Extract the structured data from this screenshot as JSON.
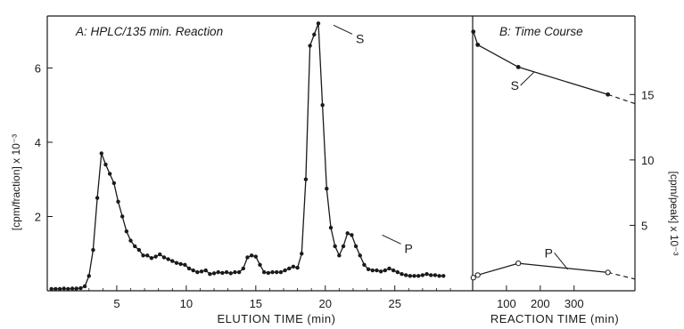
{
  "chart_data": [
    {
      "type": "line",
      "title": "A:  HPLC/135 min. Reaction",
      "xlabel": "ELUTION TIME (min)",
      "ylabel": "[cpm/fraction] x 10⁻³",
      "xlim": [
        0,
        30.6
      ],
      "ylim": [
        0,
        7.4
      ],
      "xticks": [
        5,
        10,
        15,
        20,
        25
      ],
      "yticks": [
        2,
        4,
        6
      ],
      "grid": false,
      "series": [
        {
          "x": [
            0.3,
            0.6,
            0.9,
            1.2,
            1.5,
            1.8,
            2.1,
            2.4,
            2.7,
            3.0,
            3.3,
            3.6,
            3.9,
            4.2,
            4.5,
            4.8,
            5.1,
            5.4,
            5.7,
            6.0,
            6.3,
            6.6,
            6.9,
            7.2,
            7.5,
            7.8,
            8.1,
            8.4,
            8.7,
            9.0,
            9.3,
            9.6,
            9.9,
            10.2,
            10.5,
            10.8,
            11.1,
            11.4,
            11.7,
            12.0,
            12.3,
            12.6,
            12.9,
            13.2,
            13.5,
            13.8,
            14.1,
            14.4,
            14.7,
            15.0,
            15.3,
            15.6,
            15.9,
            16.2,
            16.5,
            16.8,
            17.1,
            17.4,
            17.7,
            18.0,
            18.3,
            18.6,
            18.9,
            19.2,
            19.5,
            19.8,
            20.1,
            20.4,
            20.7,
            21.0,
            21.3,
            21.6,
            21.9,
            22.2,
            22.5,
            22.8,
            23.1,
            23.4,
            23.7,
            24.0,
            24.3,
            24.6,
            24.9,
            25.2,
            25.5,
            25.8,
            26.1,
            26.4,
            26.7,
            27.0,
            27.3,
            27.6,
            27.9,
            28.2,
            28.5
          ],
          "values": [
            0.05,
            0.05,
            0.05,
            0.06,
            0.05,
            0.06,
            0.06,
            0.07,
            0.12,
            0.4,
            1.1,
            2.5,
            3.7,
            3.4,
            3.15,
            2.9,
            2.4,
            2.0,
            1.6,
            1.35,
            1.2,
            1.1,
            0.95,
            0.95,
            0.88,
            0.92,
            0.98,
            0.9,
            0.85,
            0.8,
            0.75,
            0.72,
            0.7,
            0.6,
            0.55,
            0.5,
            0.52,
            0.55,
            0.45,
            0.47,
            0.5,
            0.48,
            0.5,
            0.47,
            0.5,
            0.5,
            0.6,
            0.9,
            0.95,
            0.92,
            0.7,
            0.5,
            0.48,
            0.5,
            0.5,
            0.5,
            0.55,
            0.6,
            0.65,
            0.62,
            1.0,
            3.0,
            6.6,
            6.9,
            7.2,
            5.0,
            2.75,
            1.7,
            1.2,
            0.95,
            1.2,
            1.55,
            1.5,
            1.2,
            0.95,
            0.7,
            0.58,
            0.55,
            0.55,
            0.52,
            0.55,
            0.6,
            0.55,
            0.5,
            0.45,
            0.42,
            0.4,
            0.4,
            0.4,
            0.42,
            0.45,
            0.42,
            0.42,
            0.4,
            0.4
          ]
        }
      ],
      "annotations": [
        {
          "text": "S",
          "x": 20.4,
          "y": 7.2
        },
        {
          "text": "P",
          "x": 23.9,
          "y": 1.55
        }
      ]
    },
    {
      "type": "line",
      "title": "B:  Time Course",
      "xlabel": "REACTION TIME (min)",
      "ylabel": "[cpm/peak] x 10⁻³",
      "xlim": [
        0,
        480
      ],
      "ylim": [
        0,
        21
      ],
      "xticks": [
        100,
        200,
        300
      ],
      "yticks": [
        5,
        10,
        15
      ],
      "grid": false,
      "series": [
        {
          "name": "S",
          "x": [
            2,
            15,
            135,
            400
          ],
          "values": [
            19.8,
            18.8,
            17.1,
            15.0
          ],
          "extrapolated": {
            "x": [
              400,
              480
            ],
            "values": [
              15.0,
              14.3
            ]
          },
          "marker": "filled"
        },
        {
          "name": "P",
          "x": [
            2,
            15,
            135,
            400
          ],
          "values": [
            1.0,
            1.2,
            2.1,
            1.4
          ],
          "extrapolated": {
            "x": [
              400,
              480
            ],
            "values": [
              1.4,
              0.9
            ]
          },
          "marker": "open"
        }
      ],
      "annotations": [
        {
          "text": "S",
          "x": 160,
          "y": 15.7
        },
        {
          "text": "P",
          "x": 260,
          "y": 2.9
        }
      ]
    }
  ]
}
